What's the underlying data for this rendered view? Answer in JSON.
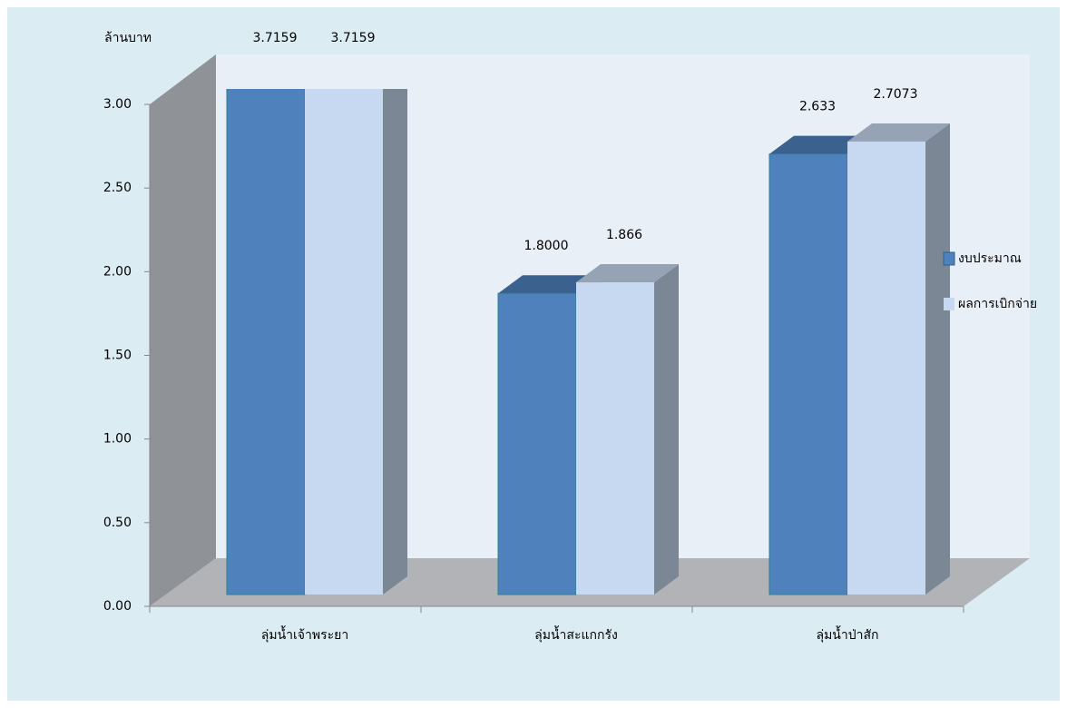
{
  "chart_data": {
    "type": "bar3d",
    "y_axis_label": "ล้านบาท",
    "categories": [
      "ลุ่มน้ำเจ้าพระยา",
      "ลุ่มน้ำสะแกกรัง",
      "ลุ่มน้ำป่าสัก"
    ],
    "series": [
      {
        "name": "งบประมาณ",
        "color": "#4f81bd",
        "values": [
          3.7159,
          1.8,
          2.633
        ],
        "value_labels": [
          "3.7159",
          "1.8000",
          "2.633"
        ]
      },
      {
        "name": "ผลการเบิกจ่าย",
        "color": "#c6d9f1",
        "values": [
          3.7159,
          1.866,
          2.7073
        ],
        "value_labels": [
          "3.7159",
          "1.866",
          "2.7073"
        ]
      }
    ],
    "ylim": [
      0,
      3
    ],
    "yticks": [
      {
        "value": 0,
        "label": "0.00"
      },
      {
        "value": 0.5,
        "label": "0.50"
      },
      {
        "value": 1,
        "label": "1.00"
      },
      {
        "value": 1.5,
        "label": "1.50"
      },
      {
        "value": 2,
        "label": "2.00"
      },
      {
        "value": 2.5,
        "label": "2.50"
      },
      {
        "value": 3,
        "label": "3.00"
      }
    ],
    "legend": "right"
  }
}
